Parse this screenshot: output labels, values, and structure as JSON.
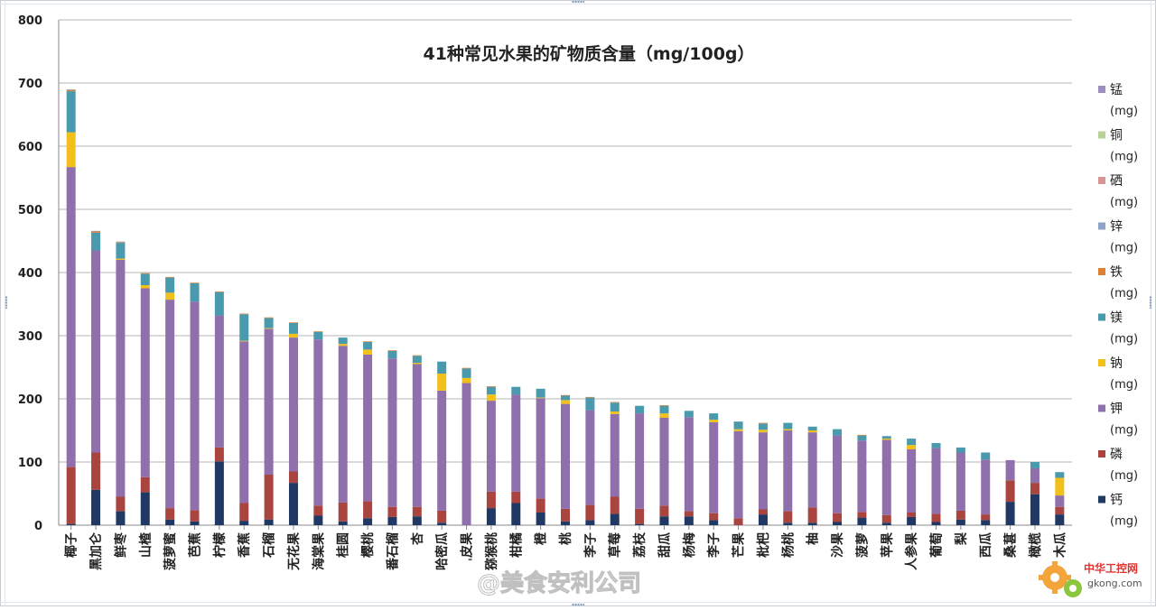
{
  "chart_data": {
    "type": "bar",
    "stacked": true,
    "title": "41种常见水果的矿物质含量（mg/100g）",
    "ylim": [
      0,
      800
    ],
    "yticks": [
      0,
      100,
      200,
      300,
      400,
      500,
      600,
      700,
      800
    ],
    "grid": true,
    "legend_position": "right",
    "categories": [
      "椰子",
      "黑加仑",
      "鲜枣",
      "山楂",
      "菠萝蜜",
      "芭蕉",
      "柠檬",
      "香蕉",
      "石榴",
      "无花果",
      "海棠果",
      "桂圆",
      "樱桃",
      "番石榴",
      "杏",
      "哈密瓜",
      "ˌ皮果",
      "猕猴桃",
      "柑橘",
      "橙",
      "桃",
      "李子",
      "草莓",
      "荔枝",
      "甜瓜",
      "杨梅",
      "李子",
      "芒果",
      "枇杷",
      "杨桃",
      "柚",
      "沙果",
      "菠萝",
      "苹果",
      "人参果",
      "葡萄",
      "梨",
      "西瓜",
      "桑葚",
      "橄榄",
      "木瓜"
    ],
    "series": [
      {
        "name": "钙 (mg)",
        "color": "#1f3864",
        "values": [
          2,
          56,
          22,
          52,
          9,
          6,
          101,
          7,
          9,
          67,
          15,
          6,
          11,
          13,
          14,
          4,
          0,
          27,
          35,
          20,
          6,
          8,
          18,
          2,
          14,
          14,
          8,
          0,
          17,
          4,
          4,
          5,
          12,
          4,
          13,
          5,
          9,
          8,
          37,
          49,
          17
        ]
      },
      {
        "name": "磷 (mg)",
        "color": "#a9443f",
        "values": [
          90,
          59,
          23,
          24,
          18,
          18,
          22,
          28,
          71,
          18,
          16,
          30,
          27,
          16,
          15,
          19,
          0,
          26,
          18,
          22,
          20,
          24,
          27,
          24,
          17,
          8,
          11,
          11,
          8,
          18,
          24,
          14,
          9,
          12,
          7,
          13,
          14,
          9,
          34,
          18,
          12
        ]
      },
      {
        "name": "钾 (mg)",
        "color": "#8f70ad",
        "values": [
          475,
          320,
          375,
          299,
          330,
          330,
          209,
          256,
          231,
          212,
          263,
          248,
          232,
          235,
          226,
          190,
          225,
          144,
          154,
          159,
          166,
          150,
          131,
          151,
          139,
          149,
          144,
          138,
          122,
          128,
          119,
          123,
          113,
          119,
          100,
          104,
          92,
          87,
          32,
          23,
          18
        ]
      },
      {
        "name": "钠 (mg)",
        "color": "#f2c01a",
        "values": [
          55,
          0,
          2,
          5,
          11,
          0,
          0,
          1,
          1,
          6,
          0,
          3,
          8,
          0,
          2,
          27,
          8,
          10,
          0,
          1,
          6,
          0,
          4,
          0,
          7,
          0,
          4,
          3,
          4,
          2,
          3,
          0,
          0,
          2,
          7,
          0,
          0,
          0,
          0,
          0,
          28
        ]
      },
      {
        "name": "镁 (mg)",
        "color": "#4a9aad",
        "values": [
          65,
          28,
          25,
          18,
          24,
          29,
          37,
          42,
          16,
          17,
          12,
          10,
          12,
          12,
          11,
          19,
          15,
          12,
          12,
          14,
          7,
          20,
          14,
          12,
          12,
          10,
          10,
          12,
          10,
          10,
          6,
          10,
          8,
          4,
          10,
          8,
          8,
          11,
          0,
          10,
          9
        ]
      },
      {
        "name": "铁 (mg)",
        "color": "#e08033",
        "values": [
          2,
          2,
          1,
          1,
          1,
          1,
          1,
          1,
          1,
          1,
          1,
          0,
          1,
          1,
          1,
          0,
          1,
          1,
          0,
          0,
          1,
          1,
          1,
          0,
          1,
          0,
          0,
          0,
          1,
          0,
          0,
          0,
          1,
          0,
          0,
          0,
          0,
          0,
          0,
          0,
          0
        ]
      },
      {
        "name": "锌 (mg)",
        "color": "#8da3c9",
        "values": [
          1,
          1,
          1,
          0,
          0,
          0,
          0,
          0,
          0,
          0,
          0,
          0,
          0,
          0,
          0,
          0,
          0,
          0,
          0,
          0,
          0,
          0,
          0,
          0,
          0,
          0,
          0,
          0,
          0,
          0,
          0,
          0,
          0,
          0,
          0,
          0,
          0,
          0,
          0,
          0,
          0
        ]
      },
      {
        "name": "硒 (mg)",
        "color": "#d89595",
        "values": [
          0,
          0,
          0,
          0,
          0,
          0,
          0,
          0,
          0,
          0,
          0,
          0,
          0,
          0,
          0,
          0,
          0,
          0,
          0,
          0,
          0,
          0,
          0,
          0,
          0,
          0,
          0,
          0,
          0,
          0,
          0,
          0,
          0,
          0,
          0,
          0,
          0,
          0,
          0,
          0,
          0
        ]
      },
      {
        "name": "铜 (mg)",
        "color": "#b7d297",
        "values": [
          0,
          0,
          0,
          0,
          0,
          0,
          0,
          0,
          0,
          0,
          0,
          0,
          0,
          0,
          0,
          0,
          0,
          0,
          0,
          0,
          0,
          0,
          0,
          0,
          0,
          0,
          0,
          0,
          0,
          0,
          0,
          0,
          0,
          0,
          0,
          0,
          0,
          0,
          0,
          0,
          0
        ]
      },
      {
        "name": "锰 (mg)",
        "color": "#9b8ec3",
        "values": [
          0,
          0,
          0,
          0,
          0,
          0,
          0,
          0,
          0,
          0,
          0,
          0,
          0,
          0,
          0,
          0,
          0,
          0,
          0,
          0,
          0,
          0,
          0,
          0,
          0,
          0,
          0,
          0,
          0,
          0,
          0,
          0,
          0,
          0,
          0,
          0,
          0,
          0,
          0,
          0,
          0
        ]
      }
    ],
    "legend": [
      {
        "name": "锰",
        "unit": "(mg)",
        "color": "#9b8ec3"
      },
      {
        "name": "铜",
        "unit": "(mg)",
        "color": "#b7d297"
      },
      {
        "name": "硒",
        "unit": "(mg)",
        "color": "#d89595"
      },
      {
        "name": "锌",
        "unit": "(mg)",
        "color": "#8da3c9"
      },
      {
        "name": "铁",
        "unit": "(mg)",
        "color": "#e08033"
      },
      {
        "name": "镁",
        "unit": "(mg)",
        "color": "#4a9aad"
      },
      {
        "name": "钠",
        "unit": "(mg)",
        "color": "#f2c01a"
      },
      {
        "name": "钾",
        "unit": "(mg)",
        "color": "#8f70ad"
      },
      {
        "name": "磷",
        "unit": "(mg)",
        "color": "#a9443f"
      },
      {
        "name": "钙",
        "unit": "(mg)",
        "color": "#1f3864"
      }
    ]
  },
  "watermark": {
    "weibo_text": "@美食安利公司",
    "site_text": "中华工控网",
    "site_url": "gkong.com"
  }
}
